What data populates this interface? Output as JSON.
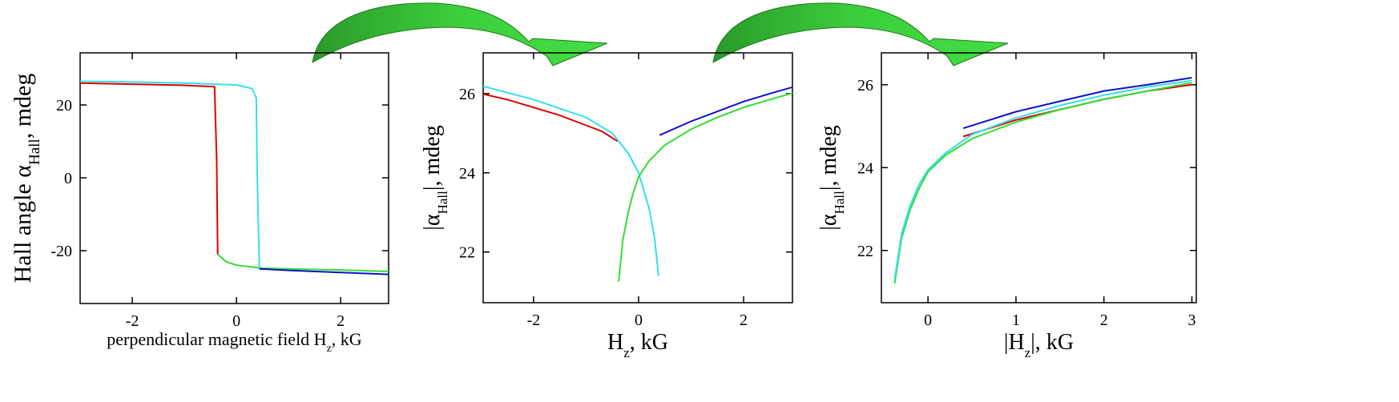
{
  "chart_data": [
    {
      "type": "line",
      "x_label": [
        "perpendicular magnetic field H",
        "z",
        ", kG"
      ],
      "y_label": [
        "Hall angle α",
        "Hall",
        ", mdeg"
      ],
      "xlim": [
        -3,
        2.92
      ],
      "ylim": [
        -34.5,
        34.3
      ],
      "xticks": [
        -2,
        0,
        2
      ],
      "yticks": [
        -20,
        0,
        20
      ],
      "series": [
        {
          "color": "#e00000",
          "x": [
            -3,
            -2,
            -1,
            -0.42,
            -0.38,
            -0.36
          ],
          "values": [
            26,
            25.7,
            25.4,
            25.0,
            5,
            -21
          ]
        },
        {
          "color": "#33dd33",
          "x": [
            -0.36,
            -0.2,
            0,
            0.5,
            1,
            2,
            2.92
          ],
          "values": [
            -21,
            -23,
            -24,
            -24.8,
            -25,
            -25.3,
            -25.7
          ]
        },
        {
          "color": "#33e0e8",
          "x": [
            -3,
            -2,
            -1,
            0,
            0.3,
            0.38,
            0.4,
            0.44
          ],
          "values": [
            26.5,
            26.3,
            26,
            25.5,
            24.5,
            22,
            0,
            -25
          ]
        },
        {
          "color": "#1010cc",
          "x": [
            0.44,
            1,
            2,
            2.92
          ],
          "values": [
            -25,
            -25.4,
            -26,
            -26.5
          ]
        }
      ]
    },
    {
      "type": "line",
      "x_label": [
        "H",
        "z",
        ", kG"
      ],
      "y_label": [
        "|α",
        "Hall",
        "|, mdeg"
      ],
      "xlim": [
        -2.96,
        2.93
      ],
      "ylim": [
        20.72,
        27.03
      ],
      "xticks": [
        -2,
        0,
        2
      ],
      "yticks": [
        22,
        24,
        26
      ],
      "series": [
        {
          "color": "#e00000",
          "x": [
            -3,
            -2.5,
            -2,
            -1.5,
            -1,
            -0.7,
            -0.4
          ],
          "values": [
            26.0,
            25.85,
            25.65,
            25.45,
            25.2,
            25.05,
            24.8
          ]
        },
        {
          "color": "#33e0e8",
          "x": [
            -3,
            -2,
            -1,
            -0.5,
            -0.2,
            0,
            0.2,
            0.3,
            0.38
          ],
          "values": [
            26.2,
            25.85,
            25.4,
            25.0,
            24.5,
            24.0,
            23.1,
            22.4,
            21.4
          ]
        },
        {
          "color": "#33dd33",
          "x": [
            -0.38,
            -0.3,
            -0.2,
            -0.1,
            0,
            0.2,
            0.5,
            1,
            1.5,
            2,
            2.5,
            2.95
          ],
          "values": [
            21.25,
            22.3,
            23.0,
            23.5,
            23.9,
            24.3,
            24.7,
            25.1,
            25.4,
            25.65,
            25.85,
            26.02
          ]
        },
        {
          "color": "#1010cc",
          "x": [
            0.4,
            1,
            1.5,
            2,
            2.5,
            2.95
          ],
          "values": [
            24.95,
            25.3,
            25.55,
            25.8,
            26.0,
            26.17
          ]
        }
      ]
    },
    {
      "type": "line",
      "x_label": [
        "|H",
        "z",
        "|, kG"
      ],
      "y_label": [
        "|α",
        "Hall",
        "|, mdeg"
      ],
      "xlim": [
        -0.53,
        3.05
      ],
      "ylim": [
        20.74,
        26.77
      ],
      "xticks": [
        0,
        1,
        2,
        3
      ],
      "yticks": [
        22,
        24,
        26
      ],
      "series": [
        {
          "color": "#e00000",
          "x": [
            0.4,
            1,
            1.5,
            2,
            2.5,
            3
          ],
          "values": [
            24.75,
            25.15,
            25.4,
            25.65,
            25.85,
            26.0
          ]
        },
        {
          "color": "#1010cc",
          "x": [
            0.4,
            1,
            1.5,
            2,
            2.5,
            3
          ],
          "values": [
            24.95,
            25.35,
            25.6,
            25.85,
            26.0,
            26.17
          ]
        },
        {
          "color": "#33dd33",
          "x": [
            -0.38,
            -0.3,
            -0.2,
            -0.1,
            0,
            0.2,
            0.5,
            1,
            1.5,
            2,
            2.5,
            3
          ],
          "values": [
            21.2,
            22.3,
            23.0,
            23.5,
            23.9,
            24.3,
            24.7,
            25.1,
            25.4,
            25.65,
            25.85,
            26.05
          ]
        },
        {
          "color": "#33e0e8",
          "x": [
            -0.38,
            -0.3,
            -0.2,
            -0.1,
            0,
            0.2,
            0.5,
            1,
            1.5,
            2,
            2.5,
            3
          ],
          "values": [
            21.3,
            22.4,
            23.1,
            23.6,
            23.95,
            24.35,
            24.8,
            25.2,
            25.5,
            25.75,
            25.95,
            26.1
          ]
        }
      ]
    }
  ]
}
